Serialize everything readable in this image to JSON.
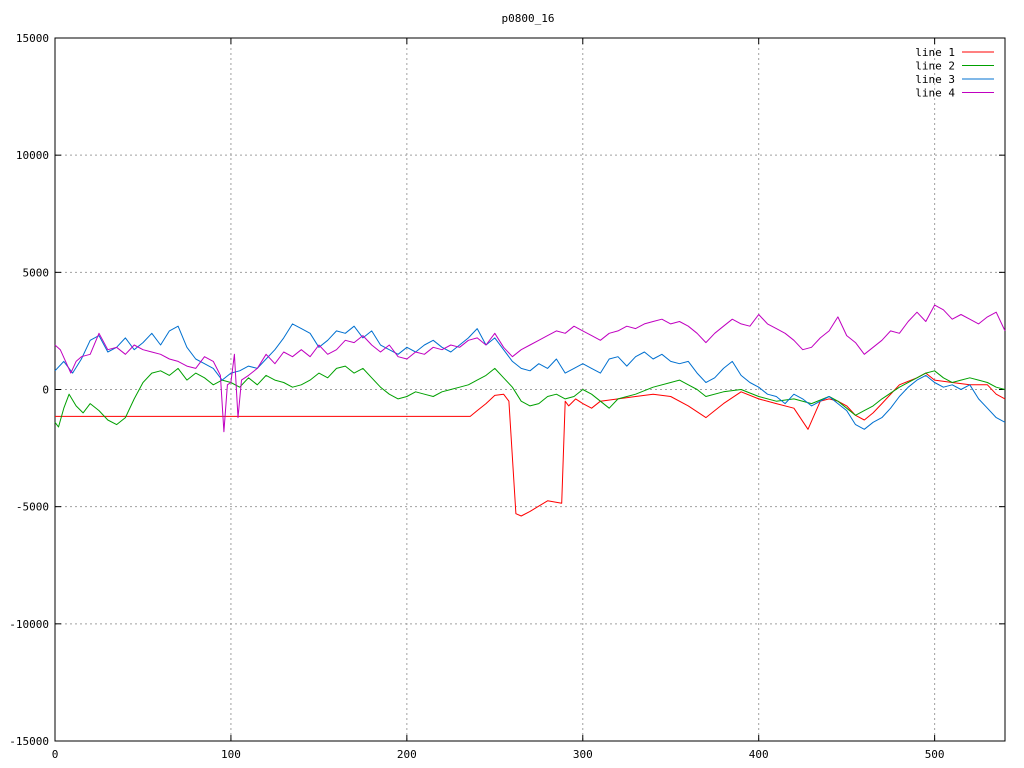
{
  "chart_data": {
    "type": "line",
    "title": "p0800_16",
    "xlabel": "",
    "ylabel": "",
    "xlim": [
      0,
      540
    ],
    "ylim": [
      -15000,
      15000
    ],
    "xticks": [
      0,
      100,
      200,
      300,
      400,
      500
    ],
    "yticks": [
      -15000,
      -10000,
      -5000,
      0,
      5000,
      10000,
      15000
    ],
    "grid": true,
    "legend_position": "top-right",
    "series": [
      {
        "name": "line 1",
        "color": "#ff0000",
        "x": [
          0,
          50,
          100,
          150,
          200,
          236,
          240,
          245,
          250,
          255,
          258,
          262,
          265,
          270,
          280,
          288,
          290,
          292,
          296,
          300,
          305,
          310,
          320,
          330,
          340,
          350,
          360,
          370,
          380,
          390,
          400,
          410,
          420,
          428,
          435,
          440,
          445,
          450,
          455,
          460,
          465,
          470,
          480,
          490,
          495,
          500,
          510,
          520,
          530,
          535,
          540
        ],
        "y": [
          -1150,
          -1150,
          -1150,
          -1150,
          -1150,
          -1150,
          -900,
          -600,
          -250,
          -200,
          -500,
          -5300,
          -5400,
          -5200,
          -4750,
          -4850,
          -500,
          -700,
          -400,
          -600,
          -800,
          -500,
          -400,
          -300,
          -200,
          -300,
          -700,
          -1200,
          -600,
          -100,
          -400,
          -600,
          -800,
          -1700,
          -500,
          -400,
          -500,
          -700,
          -1100,
          -1300,
          -1000,
          -600,
          200,
          500,
          700,
          400,
          300,
          200,
          200,
          -200,
          -400
        ]
      },
      {
        "name": "line 2",
        "color": "#00a000",
        "x": [
          0,
          2,
          5,
          8,
          12,
          16,
          20,
          25,
          30,
          35,
          40,
          45,
          50,
          55,
          60,
          65,
          70,
          75,
          80,
          85,
          90,
          95,
          100,
          105,
          110,
          115,
          120,
          125,
          130,
          135,
          140,
          145,
          150,
          155,
          160,
          165,
          170,
          175,
          180,
          185,
          190,
          195,
          200,
          205,
          210,
          215,
          220,
          225,
          230,
          235,
          240,
          245,
          250,
          255,
          260,
          265,
          270,
          275,
          280,
          285,
          290,
          295,
          300,
          305,
          310,
          315,
          320,
          330,
          340,
          350,
          355,
          360,
          365,
          370,
          380,
          390,
          400,
          410,
          420,
          430,
          440,
          445,
          450,
          455,
          460,
          465,
          470,
          480,
          490,
          495,
          500,
          505,
          510,
          515,
          520,
          525,
          530,
          535,
          540
        ],
        "y": [
          -1400,
          -1600,
          -800,
          -200,
          -700,
          -1000,
          -600,
          -900,
          -1300,
          -1500,
          -1200,
          -400,
          300,
          700,
          800,
          600,
          900,
          400,
          700,
          500,
          200,
          400,
          300,
          100,
          500,
          200,
          600,
          400,
          300,
          100,
          200,
          400,
          700,
          500,
          900,
          1000,
          700,
          900,
          500,
          100,
          -200,
          -400,
          -300,
          -100,
          -200,
          -300,
          -100,
          0,
          100,
          200,
          400,
          600,
          900,
          500,
          100,
          -500,
          -700,
          -600,
          -300,
          -200,
          -400,
          -300,
          0,
          -200,
          -500,
          -800,
          -400,
          -200,
          100,
          300,
          400,
          200,
          0,
          -300,
          -100,
          0,
          -300,
          -500,
          -400,
          -600,
          -300,
          -500,
          -800,
          -1100,
          -900,
          -700,
          -400,
          100,
          500,
          700,
          800,
          500,
          300,
          400,
          500,
          400,
          300,
          100,
          0
        ]
      },
      {
        "name": "line 3",
        "color": "#0070d0",
        "x": [
          0,
          5,
          10,
          15,
          20,
          25,
          30,
          35,
          40,
          45,
          50,
          55,
          60,
          65,
          70,
          75,
          80,
          85,
          90,
          95,
          100,
          105,
          110,
          115,
          120,
          125,
          130,
          135,
          140,
          145,
          150,
          155,
          160,
          165,
          170,
          175,
          180,
          185,
          190,
          195,
          200,
          205,
          210,
          215,
          220,
          225,
          230,
          235,
          240,
          245,
          250,
          255,
          260,
          265,
          270,
          275,
          280,
          285,
          290,
          295,
          300,
          305,
          310,
          315,
          320,
          325,
          330,
          335,
          340,
          345,
          350,
          355,
          360,
          365,
          370,
          375,
          380,
          385,
          390,
          395,
          400,
          405,
          410,
          415,
          420,
          425,
          430,
          435,
          440,
          445,
          450,
          455,
          460,
          465,
          470,
          475,
          480,
          485,
          490,
          495,
          500,
          505,
          510,
          515,
          520,
          525,
          530,
          535,
          540
        ],
        "y": [
          800,
          1200,
          700,
          1300,
          2100,
          2300,
          1600,
          1800,
          2200,
          1700,
          2000,
          2400,
          1900,
          2500,
          2700,
          1800,
          1300,
          1100,
          900,
          400,
          700,
          800,
          1000,
          900,
          1300,
          1700,
          2200,
          2800,
          2600,
          2400,
          1800,
          2100,
          2500,
          2400,
          2700,
          2200,
          2500,
          1900,
          1700,
          1500,
          1800,
          1600,
          1900,
          2100,
          1800,
          1600,
          1900,
          2200,
          2600,
          1900,
          2200,
          1700,
          1200,
          900,
          800,
          1100,
          900,
          1300,
          700,
          900,
          1100,
          900,
          700,
          1300,
          1400,
          1000,
          1400,
          1600,
          1300,
          1500,
          1200,
          1100,
          1200,
          700,
          300,
          500,
          900,
          1200,
          600,
          300,
          100,
          -200,
          -300,
          -600,
          -200,
          -400,
          -700,
          -500,
          -300,
          -600,
          -900,
          -1500,
          -1700,
          -1400,
          -1200,
          -800,
          -300,
          100,
          400,
          600,
          300,
          100,
          200,
          0,
          200,
          -400,
          -800,
          -1200,
          -1400
        ]
      },
      {
        "name": "line 4",
        "color": "#c000c0",
        "x": [
          0,
          3,
          6,
          9,
          12,
          15,
          20,
          25,
          30,
          35,
          40,
          45,
          50,
          55,
          60,
          65,
          70,
          75,
          80,
          85,
          90,
          94,
          96,
          98,
          100,
          102,
          104,
          106,
          110,
          115,
          120,
          125,
          130,
          135,
          140,
          145,
          150,
          155,
          160,
          165,
          170,
          175,
          180,
          185,
          190,
          195,
          200,
          205,
          210,
          215,
          220,
          225,
          230,
          235,
          240,
          245,
          250,
          255,
          260,
          265,
          270,
          275,
          280,
          285,
          290,
          295,
          300,
          305,
          310,
          315,
          320,
          325,
          330,
          335,
          340,
          345,
          350,
          355,
          360,
          365,
          370,
          375,
          380,
          385,
          390,
          395,
          400,
          405,
          410,
          415,
          420,
          425,
          430,
          435,
          440,
          445,
          450,
          455,
          460,
          465,
          470,
          475,
          480,
          485,
          490,
          495,
          500,
          505,
          510,
          515,
          520,
          525,
          530,
          535,
          540
        ],
        "y": [
          1900,
          1700,
          1200,
          700,
          1200,
          1400,
          1500,
          2400,
          1700,
          1800,
          1500,
          1900,
          1700,
          1600,
          1500,
          1300,
          1200,
          1000,
          900,
          1400,
          1200,
          600,
          -1800,
          200,
          300,
          1500,
          -1200,
          400,
          600,
          900,
          1500,
          1100,
          1600,
          1400,
          1700,
          1400,
          1900,
          1500,
          1700,
          2100,
          2000,
          2300,
          1900,
          1600,
          1900,
          1400,
          1300,
          1600,
          1500,
          1800,
          1700,
          1900,
          1800,
          2100,
          2200,
          1900,
          2400,
          1800,
          1400,
          1700,
          1900,
          2100,
          2300,
          2500,
          2400,
          2700,
          2500,
          2300,
          2100,
          2400,
          2500,
          2700,
          2600,
          2800,
          2900,
          3000,
          2800,
          2900,
          2700,
          2400,
          2000,
          2400,
          2700,
          3000,
          2800,
          2700,
          3200,
          2800,
          2600,
          2400,
          2100,
          1700,
          1800,
          2200,
          2500,
          3100,
          2300,
          2000,
          1500,
          1800,
          2100,
          2500,
          2400,
          2900,
          3300,
          2900,
          3600,
          3400,
          3000,
          3200,
          3000,
          2800,
          3100,
          3300,
          2500
        ]
      }
    ]
  }
}
